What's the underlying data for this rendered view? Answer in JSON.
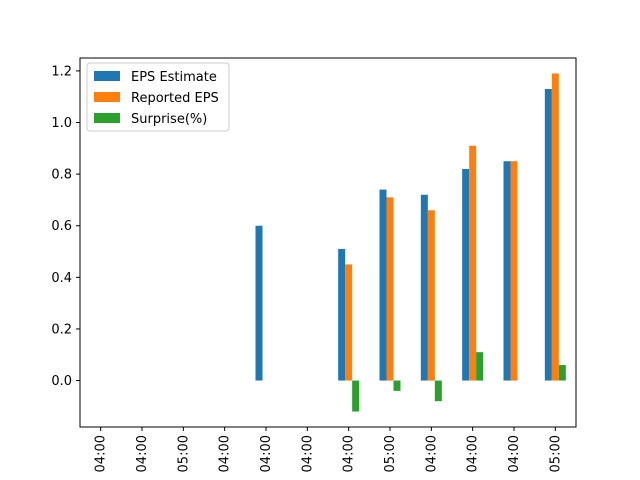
{
  "chart_data": {
    "type": "bar",
    "categories": [
      "04:00",
      "04:00",
      "05:00",
      "04:00",
      "04:00",
      "04:00",
      "04:00",
      "05:00",
      "04:00",
      "04:00",
      "04:00",
      "05:00"
    ],
    "series": [
      {
        "name": "EPS Estimate",
        "color": "#1f77b4",
        "values": [
          null,
          null,
          null,
          null,
          0.6,
          null,
          0.51,
          0.74,
          0.72,
          0.82,
          0.85,
          1.13
        ]
      },
      {
        "name": "Reported EPS",
        "color": "#ff7f0e",
        "values": [
          null,
          null,
          null,
          null,
          null,
          null,
          0.45,
          0.71,
          0.66,
          0.91,
          0.85,
          1.19
        ]
      },
      {
        "name": "Surprise(%)",
        "color": "#2ca02c",
        "values": [
          null,
          null,
          null,
          null,
          null,
          null,
          -0.12,
          -0.04,
          -0.08,
          0.11,
          0.0,
          0.06
        ]
      }
    ],
    "yticks": [
      "0.0",
      "0.2",
      "0.4",
      "0.6",
      "0.8",
      "1.0",
      "1.2"
    ],
    "ylim": [
      -0.18,
      1.25
    ],
    "legend_position": "upper-left",
    "grid": false,
    "title": "",
    "xlabel": "",
    "ylabel": ""
  }
}
